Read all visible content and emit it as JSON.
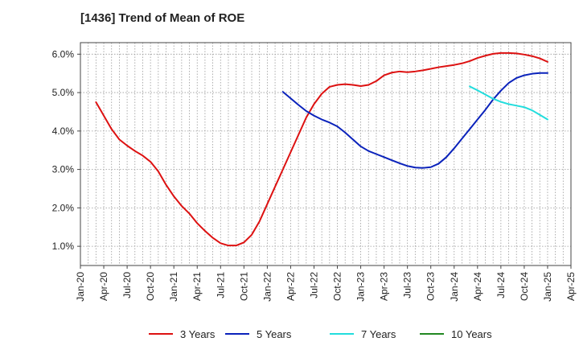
{
  "chart_data": {
    "type": "line",
    "title": "[1436]  Trend of Mean of ROE",
    "xlabel": "",
    "ylabel": "",
    "x_ticks": [
      "Jan-20",
      "Apr-20",
      "Jul-20",
      "Oct-20",
      "Jan-21",
      "Apr-21",
      "Jul-21",
      "Oct-21",
      "Jan-22",
      "Apr-22",
      "Jul-22",
      "Oct-22",
      "Jan-23",
      "Apr-23",
      "Jul-23",
      "Oct-23",
      "Jan-24",
      "Apr-24",
      "Jul-24",
      "Oct-24",
      "Jan-25",
      "Apr-25"
    ],
    "y_ticks": [
      "1.0%",
      "2.0%",
      "3.0%",
      "4.0%",
      "5.0%",
      "6.0%"
    ],
    "ylim": [
      0.5,
      6.3
    ],
    "xlim": [
      "Jan-20",
      "Apr-25"
    ],
    "grid": true,
    "legend_position": "bottom",
    "series": [
      {
        "name": "3 Years",
        "color": "#dd1111",
        "points": [
          [
            "Mar-20",
            4.75
          ],
          [
            "Apr-20",
            4.4
          ],
          [
            "May-20",
            4.05
          ],
          [
            "Jun-20",
            3.78
          ],
          [
            "Jul-20",
            3.62
          ],
          [
            "Aug-20",
            3.48
          ],
          [
            "Sep-20",
            3.36
          ],
          [
            "Oct-20",
            3.2
          ],
          [
            "Nov-20",
            2.95
          ],
          [
            "Dec-20",
            2.6
          ],
          [
            "Jan-21",
            2.3
          ],
          [
            "Feb-21",
            2.05
          ],
          [
            "Mar-21",
            1.85
          ],
          [
            "Apr-21",
            1.6
          ],
          [
            "May-21",
            1.4
          ],
          [
            "Jun-21",
            1.22
          ],
          [
            "Jul-21",
            1.08
          ],
          [
            "Aug-21",
            1.02
          ],
          [
            "Sep-21",
            1.02
          ],
          [
            "Oct-21",
            1.1
          ],
          [
            "Nov-21",
            1.3
          ],
          [
            "Dec-21",
            1.65
          ],
          [
            "Jan-22",
            2.1
          ],
          [
            "Feb-22",
            2.55
          ],
          [
            "Mar-22",
            3.0
          ],
          [
            "Apr-22",
            3.45
          ],
          [
            "May-22",
            3.9
          ],
          [
            "Jun-22",
            4.35
          ],
          [
            "Jul-22",
            4.7
          ],
          [
            "Aug-22",
            4.97
          ],
          [
            "Sep-22",
            5.15
          ],
          [
            "Oct-22",
            5.2
          ],
          [
            "Nov-22",
            5.22
          ],
          [
            "Dec-22",
            5.2
          ],
          [
            "Jan-23",
            5.17
          ],
          [
            "Feb-23",
            5.2
          ],
          [
            "Mar-23",
            5.3
          ],
          [
            "Apr-23",
            5.45
          ],
          [
            "May-23",
            5.52
          ],
          [
            "Jun-23",
            5.55
          ],
          [
            "Jul-23",
            5.53
          ],
          [
            "Aug-23",
            5.55
          ],
          [
            "Sep-23",
            5.58
          ],
          [
            "Oct-23",
            5.62
          ],
          [
            "Nov-23",
            5.66
          ],
          [
            "Dec-23",
            5.69
          ],
          [
            "Jan-24",
            5.72
          ],
          [
            "Feb-24",
            5.76
          ],
          [
            "Mar-24",
            5.82
          ],
          [
            "Apr-24",
            5.9
          ],
          [
            "May-24",
            5.96
          ],
          [
            "Jun-24",
            6.01
          ],
          [
            "Jul-24",
            6.03
          ],
          [
            "Aug-24",
            6.03
          ],
          [
            "Sep-24",
            6.02
          ],
          [
            "Oct-24",
            5.99
          ],
          [
            "Nov-24",
            5.95
          ],
          [
            "Dec-24",
            5.89
          ],
          [
            "Jan-25",
            5.8
          ]
        ]
      },
      {
        "name": "5 Years",
        "color": "#0a22bb",
        "points": [
          [
            "Mar-22",
            5.02
          ],
          [
            "Apr-22",
            4.85
          ],
          [
            "May-22",
            4.68
          ],
          [
            "Jun-22",
            4.52
          ],
          [
            "Jul-22",
            4.4
          ],
          [
            "Aug-22",
            4.3
          ],
          [
            "Sep-22",
            4.22
          ],
          [
            "Oct-22",
            4.12
          ],
          [
            "Nov-22",
            3.96
          ],
          [
            "Dec-22",
            3.78
          ],
          [
            "Jan-23",
            3.6
          ],
          [
            "Feb-23",
            3.48
          ],
          [
            "Mar-23",
            3.4
          ],
          [
            "Apr-23",
            3.32
          ],
          [
            "May-23",
            3.24
          ],
          [
            "Jun-23",
            3.16
          ],
          [
            "Jul-23",
            3.09
          ],
          [
            "Aug-23",
            3.05
          ],
          [
            "Sep-23",
            3.04
          ],
          [
            "Oct-23",
            3.06
          ],
          [
            "Nov-23",
            3.15
          ],
          [
            "Dec-23",
            3.32
          ],
          [
            "Jan-24",
            3.55
          ],
          [
            "Feb-24",
            3.8
          ],
          [
            "Mar-24",
            4.05
          ],
          [
            "Apr-24",
            4.3
          ],
          [
            "May-24",
            4.55
          ],
          [
            "Jun-24",
            4.82
          ],
          [
            "Jul-24",
            5.05
          ],
          [
            "Aug-24",
            5.25
          ],
          [
            "Sep-24",
            5.38
          ],
          [
            "Oct-24",
            5.45
          ],
          [
            "Nov-24",
            5.49
          ],
          [
            "Dec-24",
            5.51
          ],
          [
            "Jan-25",
            5.51
          ]
        ]
      },
      {
        "name": "7 Years",
        "color": "#22dddd",
        "points": [
          [
            "Mar-24",
            5.16
          ],
          [
            "Apr-24",
            5.06
          ],
          [
            "May-24",
            4.95
          ],
          [
            "Jun-24",
            4.84
          ],
          [
            "Jul-24",
            4.76
          ],
          [
            "Aug-24",
            4.7
          ],
          [
            "Sep-24",
            4.66
          ],
          [
            "Oct-24",
            4.62
          ],
          [
            "Nov-24",
            4.54
          ],
          [
            "Dec-24",
            4.42
          ],
          [
            "Jan-25",
            4.3
          ]
        ]
      },
      {
        "name": "10 Years",
        "color": "#228822",
        "points": []
      }
    ]
  }
}
